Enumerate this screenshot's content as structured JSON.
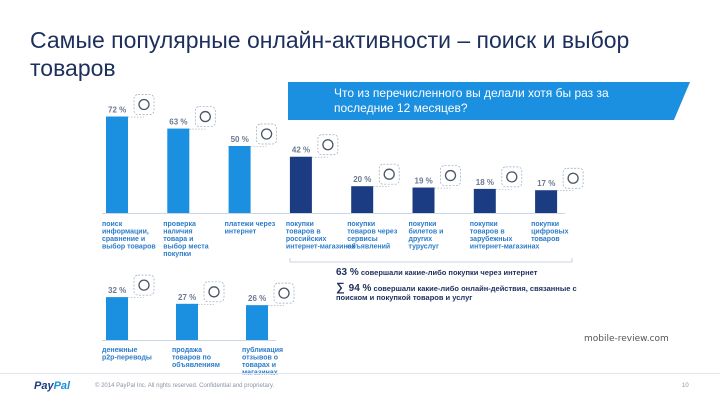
{
  "title": "Самые популярные онлайн-активности – поиск и выбор товаров",
  "question": "Что из перечисленного вы делали хотя бы раз за последние 12 месяцев?",
  "chart_data": [
    {
      "type": "bar",
      "categories": [
        "поиск информации, сравнение и выбор товаров",
        "проверка наличия товара и выбор места покупки",
        "платежи через интернет",
        "покупки товаров в российских интернет-магазинах",
        "покупки товаров через сервисы объявлений",
        "покупки билетов и других туруслуг",
        "покупки товаров в зарубежных интернет-магазинах",
        "покупки цифровых товаров"
      ],
      "values": [
        72,
        63,
        50,
        42,
        20,
        19,
        18,
        17
      ],
      "value_labels": [
        "72 %",
        "63 %",
        "50 %",
        "42 %",
        "20 %",
        "19 %",
        "18 %",
        "17 %"
      ],
      "colors": [
        "#1b8fe0",
        "#1b8fe0",
        "#1b8fe0",
        "#1b3c82",
        "#1b3c82",
        "#1b3c82",
        "#1b3c82",
        "#1b3c82"
      ],
      "icons": [
        "magnifier-icon",
        "shop-icon",
        "card-payment-icon",
        "fish-cart-icon",
        "buy-tag-icon",
        "travel-cart-icon",
        "globe-cart-icon",
        "cloud-cart-icon"
      ],
      "ylim": [
        0,
        100
      ]
    },
    {
      "type": "bar",
      "categories": [
        "денежные p2p-переводы",
        "продажа товаров по объявлениям",
        "публикация отзывов о товарах и магазинах"
      ],
      "values": [
        32,
        27,
        26
      ],
      "value_labels": [
        "32 %",
        "27 %",
        "26 %"
      ],
      "colors": [
        "#1b8fe0",
        "#1b8fe0",
        "#1b8fe0"
      ],
      "icons": [
        "money-transfer-icon",
        "sale-tag-icon",
        "speech-bubble-icon"
      ],
      "ylim": [
        0,
        100
      ]
    }
  ],
  "summary": {
    "stat1_value": "63 %",
    "stat1_text": "совершали какие-либо покупки через интернет",
    "stat2_symbol": "∑",
    "stat2_value": "94 %",
    "stat2_text": "совершали какие-либо онлайн-действия, связанные с поиском и покупкой товаров и услуг"
  },
  "watermark": "mobile-review.com",
  "footer": {
    "logo_pay": "Pay",
    "logo_pal": "Pal",
    "copyright": "© 2014 PayPal Inc. All rights reserved. Confidential and proprietary.",
    "page": "10"
  }
}
